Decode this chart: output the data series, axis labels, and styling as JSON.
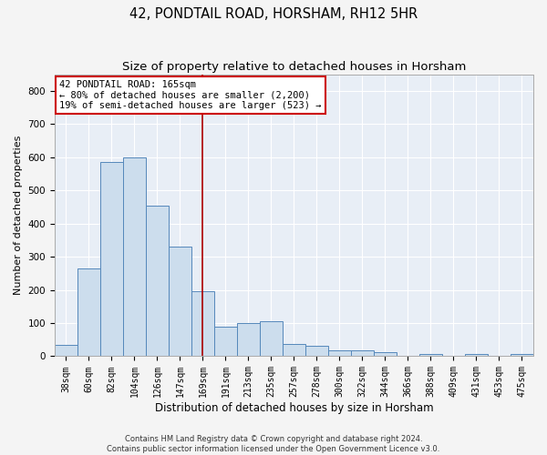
{
  "title1": "42, PONDTAIL ROAD, HORSHAM, RH12 5HR",
  "title2": "Size of property relative to detached houses in Horsham",
  "xlabel": "Distribution of detached houses by size in Horsham",
  "ylabel": "Number of detached properties",
  "categories": [
    "38sqm",
    "60sqm",
    "82sqm",
    "104sqm",
    "126sqm",
    "147sqm",
    "169sqm",
    "191sqm",
    "213sqm",
    "235sqm",
    "257sqm",
    "278sqm",
    "300sqm",
    "322sqm",
    "344sqm",
    "366sqm",
    "388sqm",
    "409sqm",
    "431sqm",
    "453sqm",
    "475sqm"
  ],
  "values": [
    35,
    265,
    585,
    600,
    455,
    330,
    195,
    90,
    100,
    105,
    37,
    32,
    17,
    17,
    12,
    0,
    7,
    0,
    8,
    0,
    8
  ],
  "bar_color": "#ccdded",
  "bar_edge_color": "#5588bb",
  "vline_x": 6,
  "vline_color": "#aa0000",
  "annotation_text": "42 PONDTAIL ROAD: 165sqm\n← 80% of detached houses are smaller (2,200)\n19% of semi-detached houses are larger (523) →",
  "annotation_box_color": "#ffffff",
  "annotation_box_edge": "#cc0000",
  "footer1": "Contains HM Land Registry data © Crown copyright and database right 2024.",
  "footer2": "Contains public sector information licensed under the Open Government Licence v3.0.",
  "ylim": [
    0,
    850
  ],
  "yticks": [
    0,
    100,
    200,
    300,
    400,
    500,
    600,
    700,
    800
  ],
  "background_color": "#f4f4f4",
  "plot_bg_color": "#e8eef6",
  "grid_color": "#ffffff",
  "title1_fontsize": 10.5,
  "title2_fontsize": 9.5,
  "tick_fontsize": 7,
  "ylabel_fontsize": 8,
  "xlabel_fontsize": 8.5,
  "annotation_fontsize": 7.5,
  "footer_fontsize": 6
}
